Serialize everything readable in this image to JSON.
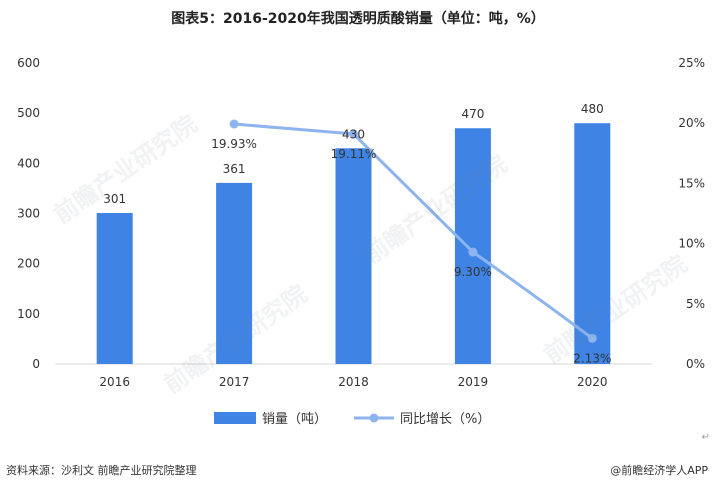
{
  "title": "图表5：2016-2020年我国透明质酸销量（单位：吨，%）",
  "footer": {
    "source": "资料来源：沙利文 前瞻产业研究院整理",
    "brand": "@前瞻经济学人APP",
    "return_mark": "↵"
  },
  "watermark": "前瞻产业研究院",
  "chart_data": {
    "type": "bar",
    "categories": [
      "2016",
      "2017",
      "2018",
      "2019",
      "2020"
    ],
    "series": [
      {
        "name": "销量（吨）",
        "type": "bar",
        "axis": "left",
        "values": [
          301,
          361,
          430,
          470,
          480
        ],
        "labels": [
          "301",
          "361",
          "430",
          "470",
          "480"
        ],
        "color": "#3f84e5"
      },
      {
        "name": "同比增长（%）",
        "type": "line",
        "axis": "right",
        "x": [
          "2017",
          "2018",
          "2019",
          "2020"
        ],
        "values": [
          19.93,
          19.11,
          9.3,
          2.13
        ],
        "labels": [
          "19.93%",
          "19.11%",
          "9.30%",
          "2.13%"
        ],
        "color": "#8db4ee"
      }
    ],
    "y_left": {
      "min": 0,
      "max": 600,
      "step": 100,
      "ticks": [
        "0",
        "100",
        "200",
        "300",
        "400",
        "500",
        "600"
      ]
    },
    "y_right": {
      "min": 0,
      "max": 25,
      "step": 5,
      "ticks": [
        "0%",
        "5%",
        "10%",
        "15%",
        "20%",
        "25%"
      ]
    },
    "grid": false,
    "legend": "bottom"
  }
}
